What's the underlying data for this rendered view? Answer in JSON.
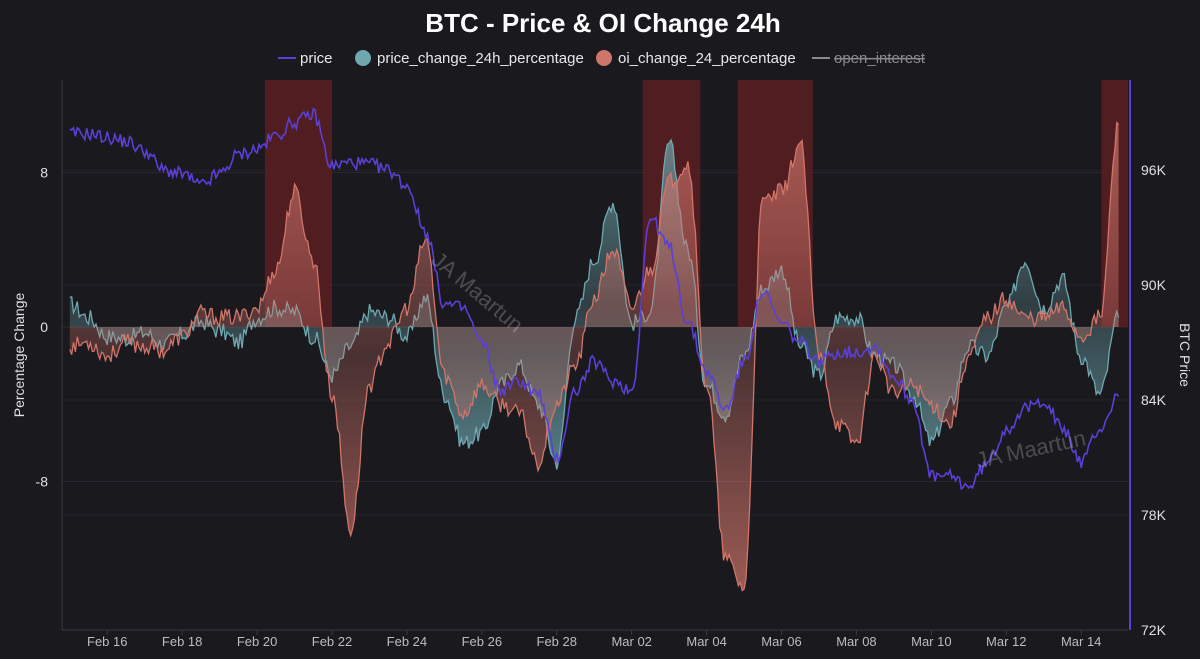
{
  "chart_data": {
    "type": "area",
    "title": "BTC - Price & OI Change 24h",
    "legend": [
      {
        "label": "price",
        "marker": "line",
        "color": "#5b3fd6",
        "enabled": true
      },
      {
        "label": "price_change_24h_percentage",
        "marker": "circle",
        "color": "#6fa8b0",
        "enabled": true
      },
      {
        "label": "oi_change_24_percentage",
        "marker": "circle",
        "color": "#d0756a",
        "enabled": true
      },
      {
        "label": "open_interest",
        "marker": "line",
        "color": "#9a9a9a",
        "enabled": false
      }
    ],
    "legend_position": "top-center",
    "x_tick_labels": [
      "Feb 16",
      "Feb 18",
      "Feb 20",
      "Feb 22",
      "Feb 24",
      "Feb 26",
      "Feb 28",
      "Mar 02",
      "Mar 04",
      "Mar 06",
      "Mar 08",
      "Mar 10",
      "Mar 12",
      "Mar 14"
    ],
    "y_left": {
      "label": "Percentage Change",
      "ticks": [
        "8",
        "0",
        "-8"
      ],
      "tick_values": [
        8,
        0,
        -8
      ],
      "range": [
        -15.7,
        12.8
      ]
    },
    "y_right": {
      "label": "BTC Price",
      "ticks": [
        "96K",
        "90K",
        "84K",
        "78K",
        "72K"
      ],
      "tick_values": [
        96000,
        90000,
        84000,
        78000,
        72000
      ],
      "range": [
        72000,
        100700
      ]
    },
    "x_range_days": [
      "Feb 14 19:00",
      "Mar 15 06:00"
    ],
    "highlight_periods": [
      {
        "start": "Feb 20 05:00",
        "end": "Feb 22 00:00"
      },
      {
        "start": "Mar 02 07:00",
        "end": "Mar 03 20:00"
      },
      {
        "start": "Mar 04 20:00",
        "end": "Mar 06 20:00"
      },
      {
        "start": "Mar 14 13:00",
        "end": "Mar 15 10:00"
      }
    ],
    "colors": {
      "price": "#5b3fd6",
      "price_change": "#6fa8b0",
      "oi_change": "#d0756a",
      "highlight": "#5a1f22",
      "background": "#1a191e",
      "grid": "#2b2a30"
    },
    "grid": true,
    "x": [
      "Feb 15 00:00",
      "Feb 15 12:00",
      "Feb 16 00:00",
      "Feb 16 12:00",
      "Feb 17 00:00",
      "Feb 17 12:00",
      "Feb 18 00:00",
      "Feb 18 12:00",
      "Feb 19 00:00",
      "Feb 19 12:00",
      "Feb 20 00:00",
      "Feb 20 12:00",
      "Feb 21 00:00",
      "Feb 21 12:00",
      "Feb 22 00:00",
      "Feb 22 12:00",
      "Feb 23 00:00",
      "Feb 23 12:00",
      "Feb 24 00:00",
      "Feb 24 12:00",
      "Feb 25 00:00",
      "Feb 25 12:00",
      "Feb 26 00:00",
      "Feb 26 12:00",
      "Feb 27 00:00",
      "Feb 27 12:00",
      "Feb 28 00:00",
      "Feb 28 12:00",
      "Mar 01 00:00",
      "Mar 01 12:00",
      "Mar 02 00:00",
      "Mar 02 12:00",
      "Mar 03 00:00",
      "Mar 03 12:00",
      "Mar 04 00:00",
      "Mar 04 12:00",
      "Mar 05 00:00",
      "Mar 05 12:00",
      "Mar 06 00:00",
      "Mar 06 12:00",
      "Mar 07 00:00",
      "Mar 07 12:00",
      "Mar 08 00:00",
      "Mar 08 12:00",
      "Mar 09 00:00",
      "Mar 09 12:00",
      "Mar 10 00:00",
      "Mar 10 12:00",
      "Mar 11 00:00",
      "Mar 11 12:00",
      "Mar 12 00:00",
      "Mar 12 12:00",
      "Mar 13 00:00",
      "Mar 13 12:00",
      "Mar 14 00:00",
      "Mar 14 12:00",
      "Mar 15 00:00"
    ],
    "series": [
      {
        "name": "price",
        "axis": "right",
        "values": [
          97900,
          97900,
          97700,
          97500,
          97000,
          96000,
          95800,
          95200,
          95800,
          96800,
          97100,
          97800,
          98500,
          98900,
          96200,
          96400,
          96300,
          96000,
          95200,
          92800,
          89000,
          88800,
          87000,
          84500,
          85000,
          84300,
          81000,
          84500,
          86000,
          85000,
          84500,
          93500,
          92000,
          88000,
          85500,
          83500,
          86000,
          89600,
          88000,
          87000,
          86000,
          86500,
          86500,
          86800,
          85200,
          84000,
          80000,
          80000,
          79500,
          80700,
          82500,
          83500,
          84000,
          82500,
          80800,
          82500,
          84200
        ]
      },
      {
        "name": "price_change_24h_percentage",
        "axis": "left",
        "values": [
          1.2,
          0.5,
          -0.5,
          -0.6,
          -0.3,
          -0.9,
          -0.4,
          0.3,
          -0.2,
          -0.8,
          0.5,
          1.0,
          0.8,
          -0.5,
          -2.5,
          -1.0,
          0.8,
          0.5,
          -0.5,
          1.5,
          -3.5,
          -6.0,
          -5.5,
          -3.0,
          -2.0,
          -4.0,
          -7.0,
          0.5,
          3.5,
          6.5,
          0.2,
          0.8,
          9.5,
          4.0,
          -3.0,
          -4.5,
          -1.5,
          2.0,
          3.0,
          -1.0,
          -2.5,
          0.5,
          0.5,
          -1.5,
          -2.0,
          -3.5,
          -6.0,
          -4.0,
          -1.0,
          -1.5,
          1.0,
          3.5,
          1.0,
          2.5,
          -1.5,
          -3.5,
          0.5
        ]
      },
      {
        "name": "oi_change_24_percentage",
        "axis": "left",
        "values": [
          -1.0,
          -0.8,
          -1.5,
          -0.8,
          -1.0,
          -1.2,
          -0.5,
          0.7,
          0.5,
          0.5,
          1.0,
          3.0,
          7.0,
          3.5,
          -3.5,
          -10.5,
          -3.0,
          -0.8,
          1.0,
          4.5,
          -2.5,
          -4.5,
          -3.0,
          -4.0,
          -4.5,
          -7.0,
          -4.0,
          -2.0,
          1.5,
          4.0,
          1.0,
          3.0,
          7.5,
          8.5,
          -3.0,
          -12.0,
          -13.5,
          6.5,
          7.0,
          9.5,
          -1.5,
          -5.0,
          -6.0,
          -1.5,
          -3.5,
          -3.0,
          -4.0,
          -5.0,
          -1.5,
          0.5,
          1.5,
          0.5,
          0.5,
          1.0,
          -0.5,
          0.5,
          10.5
        ]
      }
    ]
  }
}
